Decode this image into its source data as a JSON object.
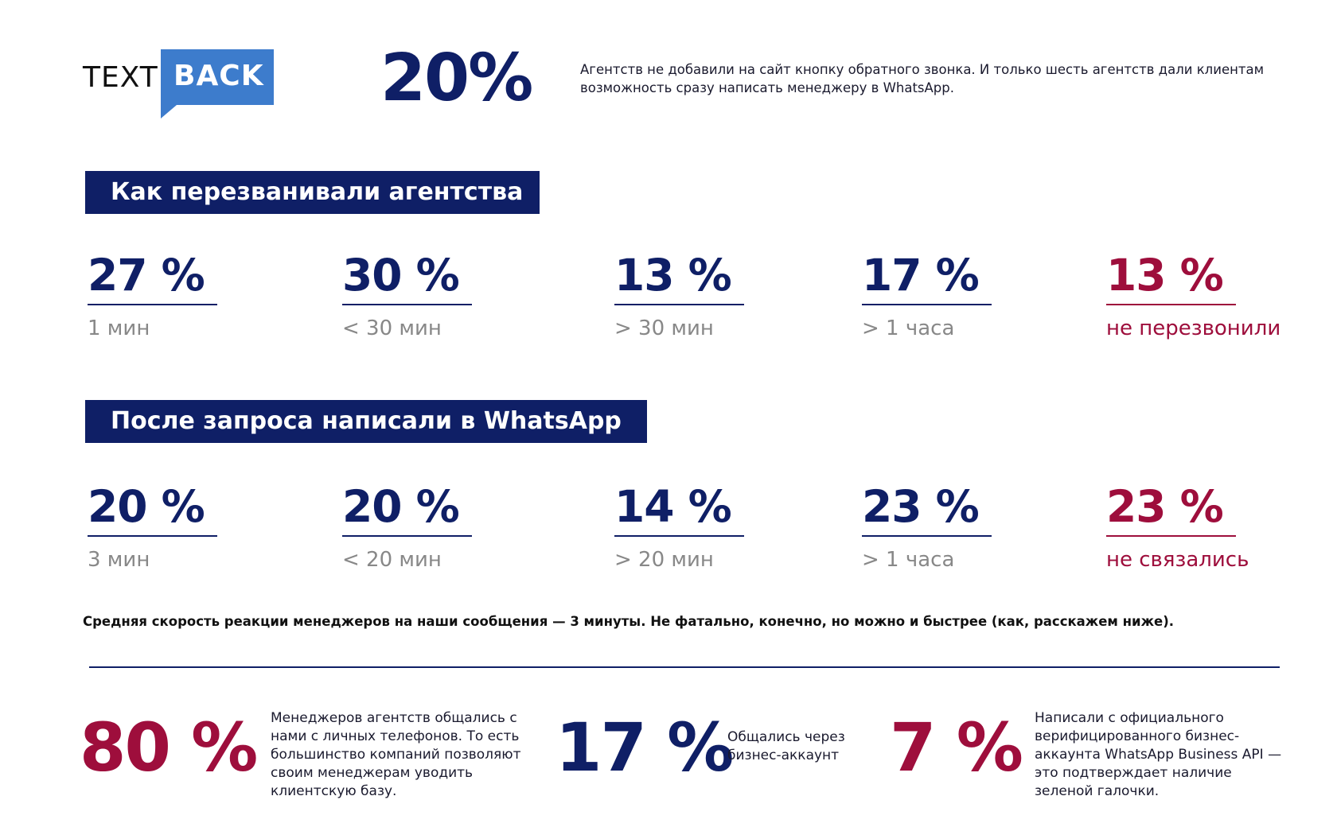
{
  "logo": {
    "text": "TEXT",
    "badge": "BACK"
  },
  "top_stat": {
    "value": "20%",
    "description": "Агентств не добавили на сайт кнопку обратного звонка. И только шесть агентств дали клиентам возможность сразу написать менеджеру в WhatsApp."
  },
  "section_callback": {
    "title": "Как перезванивали агентства",
    "stats": [
      {
        "value": "27 %",
        "label": "1 мин"
      },
      {
        "value": "30 %",
        "label": "< 30 мин"
      },
      {
        "value": "13 %",
        "label": "> 30 мин"
      },
      {
        "value": "17 %",
        "label": "> 1 часа"
      },
      {
        "value": "13 %",
        "label": "не перезвонили"
      }
    ]
  },
  "section_whatsapp": {
    "title": "После запроса написали в WhatsApp",
    "stats": [
      {
        "value": "20 %",
        "label": "3 мин"
      },
      {
        "value": "20 %",
        "label": "< 20 мин"
      },
      {
        "value": "14 %",
        "label": "> 20 мин"
      },
      {
        "value": "23 %",
        "label": "> 1 часа"
      },
      {
        "value": "23 %",
        "label": "не связались"
      }
    ]
  },
  "note": "Средняя скорость реакции менеджеров на наши сообщения — 3 минуты. Не фатально, конечно, но можно и быстрее (как, расскажем ниже).",
  "bottom": [
    {
      "value": "80 %",
      "text": "Менеджеров агентств общались с нами с личных телефонов. То есть большинство компаний позволяют своим менеджерам уводить клиентскую базу."
    },
    {
      "value": "17 %",
      "text": "Общались через бизнес-аккаунт"
    },
    {
      "value": "7 %",
      "text": "Написали с официального верифицированного бизнес-аккаунта WhatsApp Business API — это подтверждает наличие зеленой галочки."
    }
  ],
  "colors": {
    "navy": "#0f1f66",
    "crimson": "#9e0e3c",
    "logo_blue": "#3d7ccc",
    "label_gray": "#888888"
  }
}
